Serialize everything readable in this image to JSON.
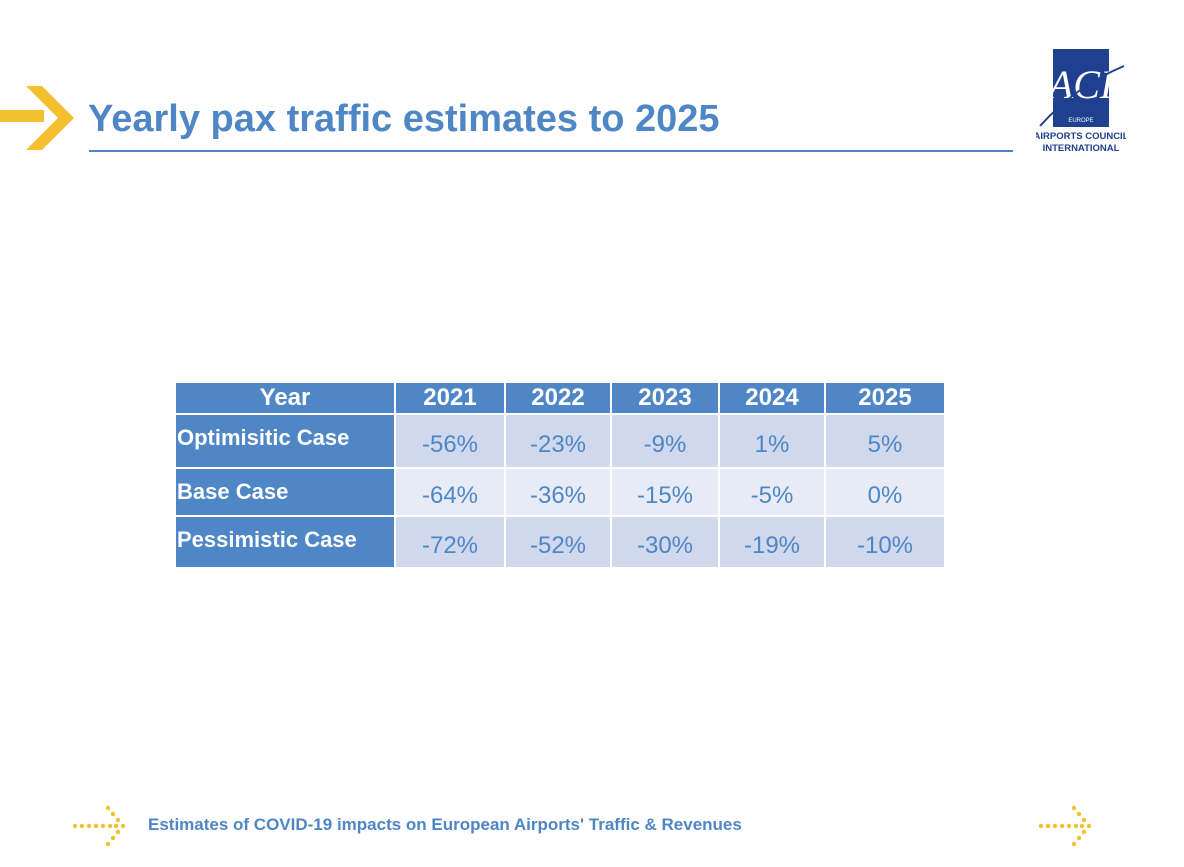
{
  "slide": {
    "title": "Yearly pax traffic estimates to 2025",
    "footer": "Estimates of COVID-19 impacts on European Airports' Traffic & Revenues"
  },
  "logo": {
    "mark": "ACI",
    "region": "EUROPE",
    "line1": "AIRPORTS COUNCIL",
    "line2": "INTERNATIONAL"
  },
  "table": {
    "headers": [
      "Year",
      "2021",
      "2022",
      "2023",
      "2024",
      "2025"
    ],
    "rows": [
      {
        "label": "Optimisitic Case",
        "values": [
          "-56%",
          "-23%",
          "-9%",
          "1%",
          "5%"
        ]
      },
      {
        "label": "Base Case",
        "values": [
          "-64%",
          "-36%",
          "-15%",
          "-5%",
          "0%"
        ]
      },
      {
        "label": "Pessimistic Case",
        "values": [
          "-72%",
          "-52%",
          "-30%",
          "-19%",
          "-10%"
        ]
      }
    ]
  },
  "colors": {
    "primary": "#4f86c6",
    "accent": "#f5c02f",
    "row_dark": "#cfd8ec",
    "row_light": "#e7ebf5"
  },
  "icons": {
    "title_arrow": "chevron-right-icon",
    "footer_arrows": "dotted-arrow-icon"
  }
}
